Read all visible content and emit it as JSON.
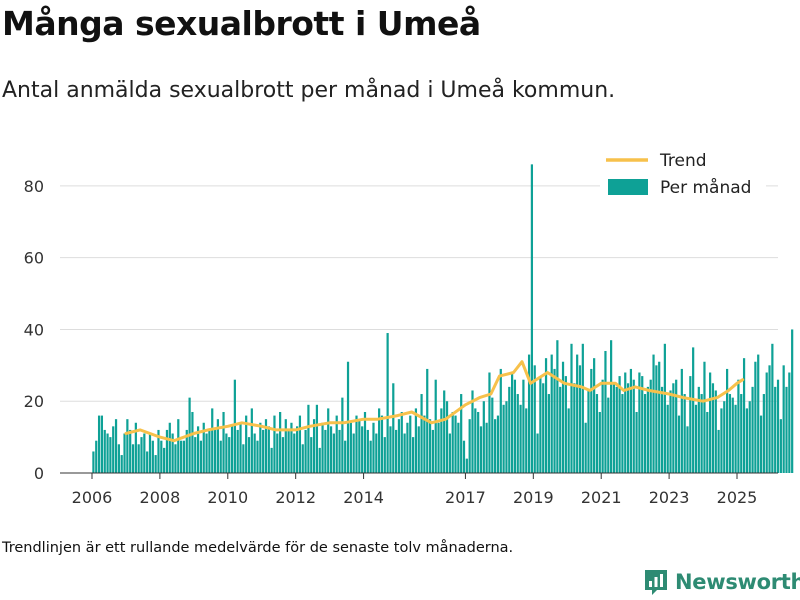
{
  "header": {
    "title": "Många sexualbrott i Umeå",
    "subtitle": "Antal anmälda sexualbrott per månad i Umeå kommun."
  },
  "footnote": "Trendlinjen är ett rullande medelvärde för de senaste tolv månaderna.",
  "brand": {
    "name": "Newsworthy",
    "color": "#2e8b73"
  },
  "colors": {
    "bars": "#0ea196",
    "trend": "#f7c14b",
    "grid": "#dddddd",
    "axis": "#333333"
  },
  "chart_data": {
    "type": "bar",
    "title": "Många sexualbrott i Umeå",
    "subtitle": "Antal anmälda sexualbrott per månad i Umeå kommun.",
    "xlabel": "",
    "ylabel": "",
    "ylim": [
      0,
      90
    ],
    "yticks": [
      0,
      20,
      40,
      60,
      80
    ],
    "xticks": [
      "2006",
      "2008",
      "2010",
      "2012",
      "2014",
      "2017",
      "2019",
      "2021",
      "2023",
      "2025"
    ],
    "xtick_years": [
      2006,
      2008,
      2010,
      2012,
      2014,
      2017,
      2019,
      2021,
      2023,
      2025
    ],
    "x_start": "2006-01",
    "x_end": "2025-03",
    "grid": true,
    "legend_position": "top-right",
    "series": [
      {
        "name": "Per månad",
        "type": "bar",
        "values": [
          6,
          9,
          16,
          16,
          12,
          11,
          10,
          13,
          15,
          8,
          5,
          11,
          15,
          12,
          8,
          14,
          8,
          10,
          11,
          6,
          11,
          9,
          5,
          12,
          9,
          7,
          12,
          14,
          11,
          8,
          15,
          9,
          9,
          12,
          21,
          17,
          10,
          13,
          9,
          14,
          11,
          12,
          18,
          12,
          15,
          9,
          17,
          11,
          10,
          13,
          26,
          12,
          14,
          8,
          16,
          10,
          18,
          11,
          9,
          14,
          12,
          15,
          13,
          7,
          16,
          11,
          17,
          10,
          15,
          12,
          14,
          11,
          13,
          16,
          8,
          12,
          19,
          10,
          15,
          19,
          7,
          14,
          12,
          18,
          13,
          11,
          16,
          12,
          21,
          9,
          31,
          14,
          11,
          16,
          15,
          13,
          17,
          12,
          9,
          14,
          11,
          18,
          16,
          10,
          39,
          13,
          25,
          12,
          15,
          17,
          11,
          14,
          16,
          10,
          18,
          13,
          22,
          16,
          29,
          15,
          12,
          26,
          14,
          18,
          23,
          20,
          11,
          17,
          16,
          14,
          22,
          9,
          4,
          15,
          23,
          18,
          17,
          13,
          20,
          14,
          28,
          21,
          15,
          16,
          29,
          19,
          20,
          24,
          28,
          26,
          22,
          19,
          26,
          18,
          33,
          86,
          30,
          11,
          27,
          25,
          32,
          22,
          33,
          29,
          37,
          24,
          31,
          27,
          18,
          36,
          25,
          33,
          30,
          36,
          14,
          23,
          29,
          32,
          22,
          17,
          26,
          34,
          21,
          37,
          25,
          24,
          27,
          22,
          28,
          25,
          29,
          26,
          17,
          28,
          27,
          22,
          24,
          26,
          33,
          30,
          31,
          24,
          36,
          19,
          23,
          25,
          26,
          16,
          29,
          22,
          13,
          27,
          35,
          19,
          24,
          22,
          31,
          17,
          28,
          25,
          23,
          12,
          18,
          20,
          29,
          22,
          21,
          19,
          26,
          22,
          32,
          18,
          20,
          24,
          31,
          33,
          16,
          22,
          28,
          30,
          36,
          24,
          26,
          15,
          30,
          24,
          28,
          40
        ],
        "note": "Monthly counts read approximately from bars, Jan 2006 to Mar 2025"
      },
      {
        "name": "Trend",
        "type": "line",
        "points": [
          [
            "2007-01",
            11
          ],
          [
            "2007-06",
            12
          ],
          [
            "2008-01",
            10
          ],
          [
            "2008-06",
            9
          ],
          [
            "2009-01",
            11
          ],
          [
            "2009-06",
            12
          ],
          [
            "2010-01",
            13
          ],
          [
            "2010-06",
            14
          ],
          [
            "2011-01",
            13
          ],
          [
            "2011-06",
            12
          ],
          [
            "2012-01",
            12
          ],
          [
            "2012-06",
            13
          ],
          [
            "2013-01",
            14
          ],
          [
            "2013-06",
            14
          ],
          [
            "2014-01",
            15
          ],
          [
            "2014-06",
            15
          ],
          [
            "2015-01",
            16
          ],
          [
            "2015-06",
            17
          ],
          [
            "2016-01",
            14
          ],
          [
            "2016-06",
            15
          ],
          [
            "2017-01",
            19
          ],
          [
            "2017-06",
            21
          ],
          [
            "2017-10",
            22
          ],
          [
            "2018-01",
            27
          ],
          [
            "2018-06",
            28
          ],
          [
            "2018-09",
            31
          ],
          [
            "2018-12",
            25
          ],
          [
            "2019-06",
            28
          ],
          [
            "2019-12",
            25
          ],
          [
            "2020-06",
            24
          ],
          [
            "2020-09",
            23
          ],
          [
            "2021-01",
            25
          ],
          [
            "2021-06",
            25
          ],
          [
            "2021-09",
            23
          ],
          [
            "2022-01",
            24
          ],
          [
            "2022-06",
            23
          ],
          [
            "2023-01",
            22
          ],
          [
            "2023-06",
            21
          ],
          [
            "2024-01",
            20
          ],
          [
            "2024-06",
            21
          ],
          [
            "2024-10",
            23
          ],
          [
            "2025-01",
            25
          ],
          [
            "2025-03",
            26
          ]
        ]
      }
    ]
  }
}
